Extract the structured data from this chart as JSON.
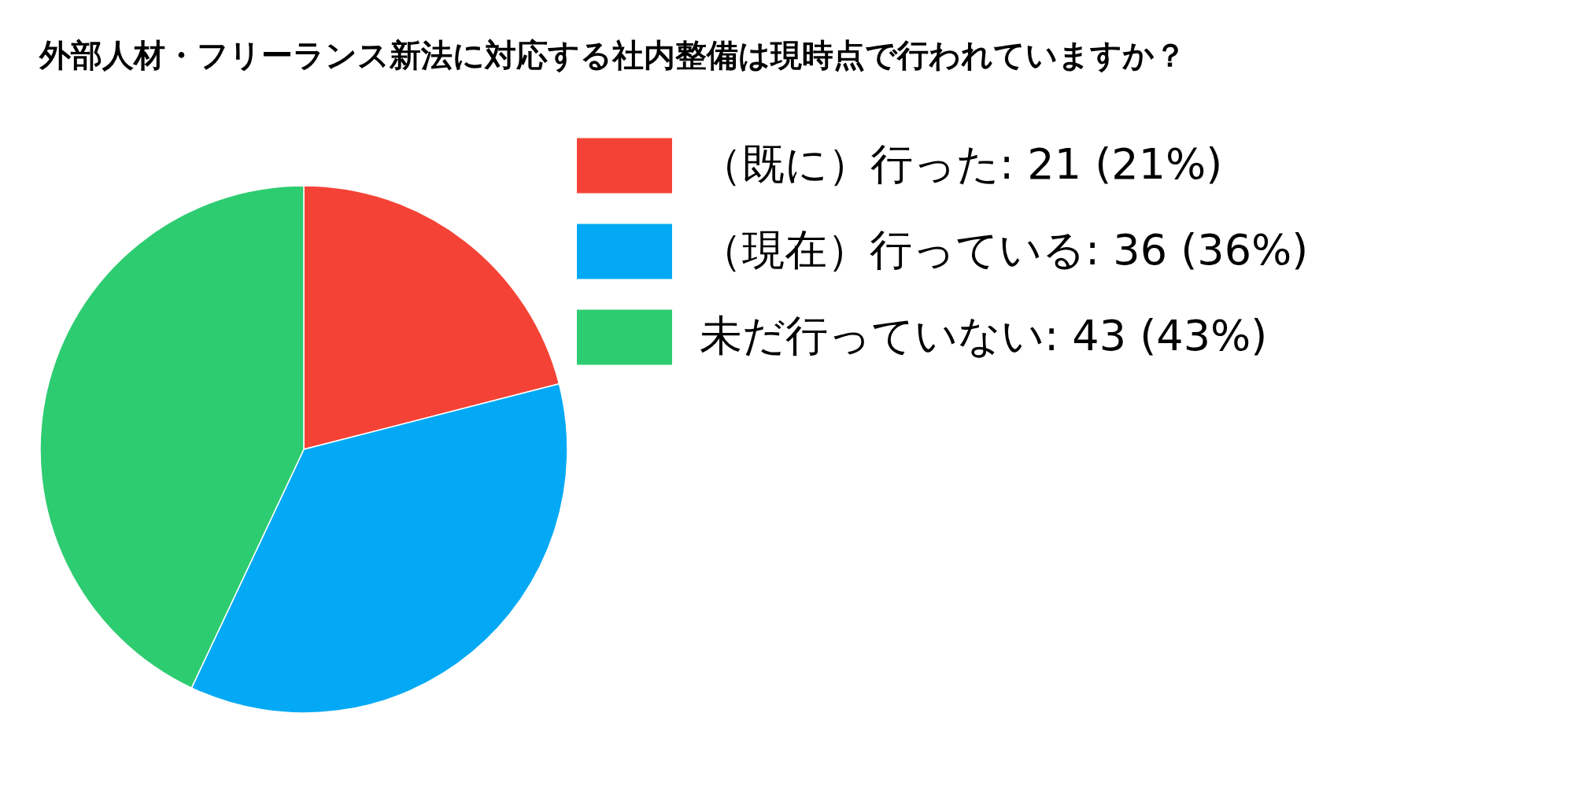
{
  "chart_data": {
    "type": "pie",
    "title": "外部人材・フリーランス新法に対応する社内整備は現時点で行われていますか？",
    "categories": [
      "（既に）行った: 21 (21%)",
      "（現在）行っている: 36 (36%)",
      "未だ行っていない: 43 (43%)"
    ],
    "values": [
      21,
      36,
      43
    ],
    "colors": [
      "#f44336",
      "#03a9f4",
      "#2ecc71"
    ],
    "legend": "top right"
  }
}
